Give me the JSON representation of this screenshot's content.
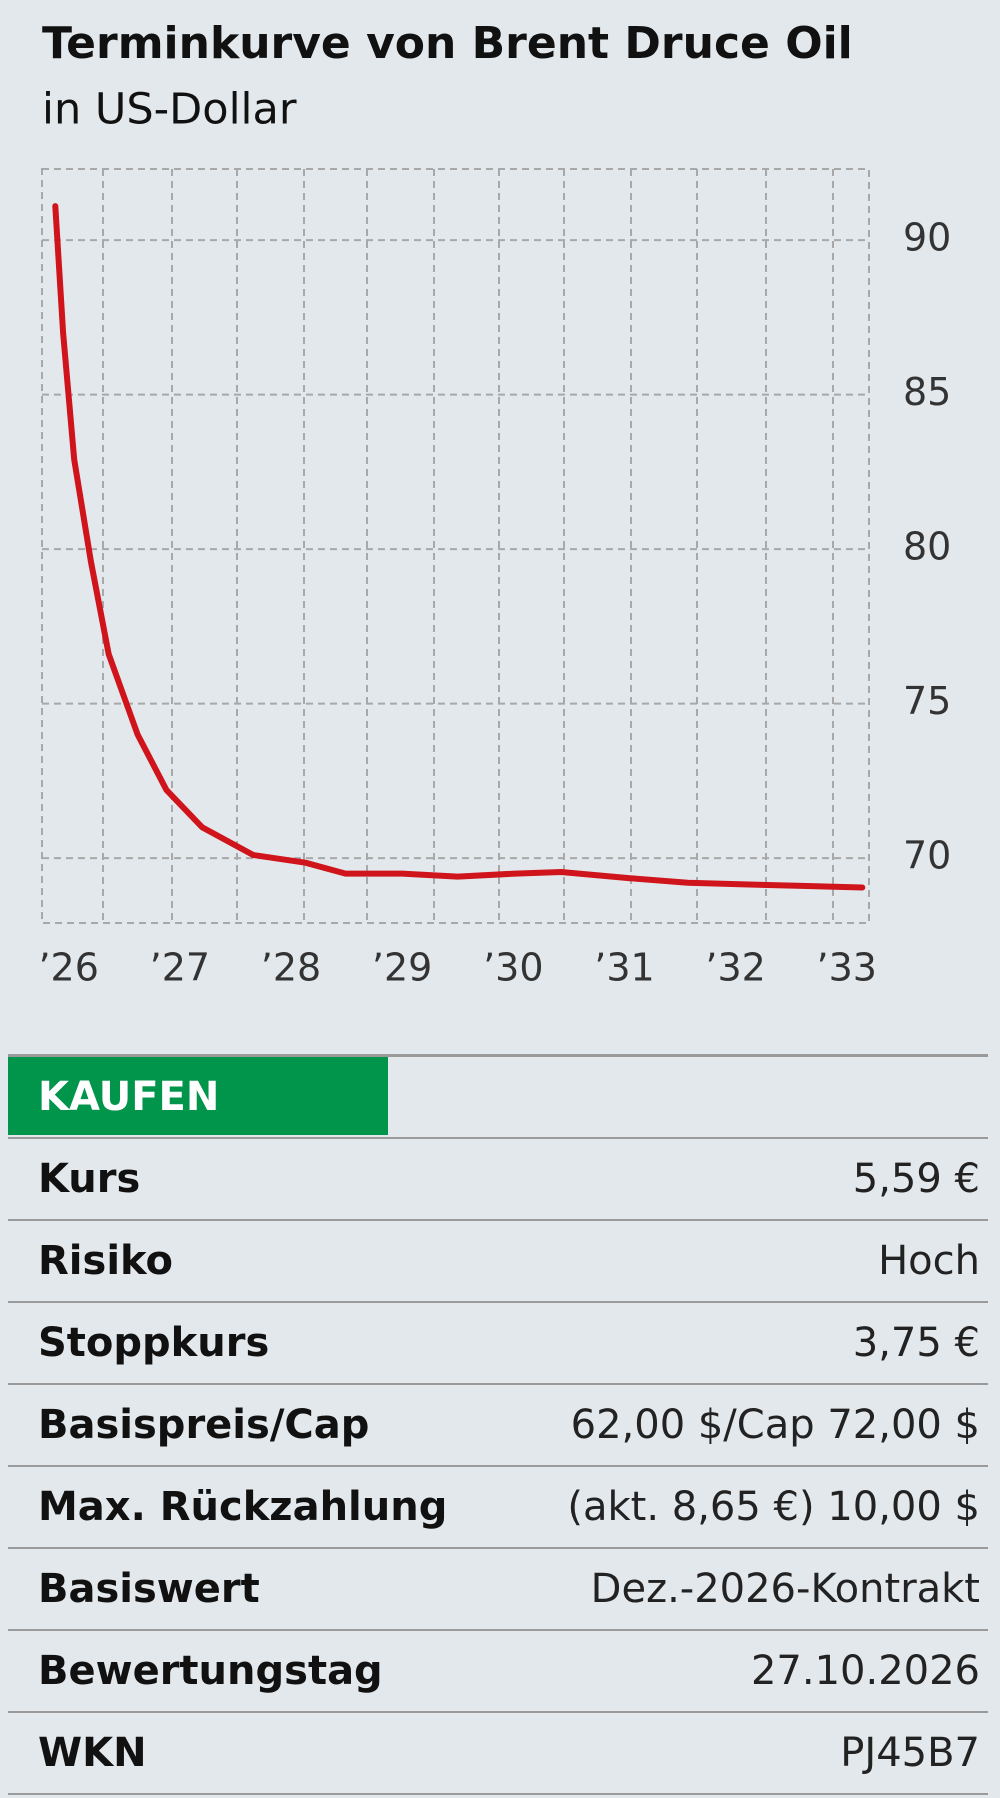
{
  "chart_data": {
    "type": "line",
    "title": "Terminkurve von Brent Druce Oil",
    "subtitle": "in US-Dollar",
    "x": [
      25.88,
      25.95,
      26.05,
      26.2,
      26.36,
      26.62,
      26.88,
      27.2,
      27.66,
      28.13,
      28.49,
      29.0,
      29.5,
      30.02,
      30.43,
      31.05,
      31.57,
      32.08,
      32.6,
      33.14
    ],
    "values": [
      91.1,
      87.0,
      82.9,
      79.6,
      76.6,
      74.0,
      72.2,
      71.0,
      70.1,
      69.85,
      69.5,
      69.5,
      69.4,
      69.5,
      69.55,
      69.35,
      69.2,
      69.15,
      69.1,
      69.05
    ],
    "color": "#d0141c",
    "xlim": [
      25.76,
      33.2
    ],
    "xticks": [
      {
        "value": 26,
        "label": "’26"
      },
      {
        "value": 27,
        "label": "’27"
      },
      {
        "value": 28,
        "label": "’28"
      },
      {
        "value": 29,
        "label": "’29"
      },
      {
        "value": 30,
        "label": "’30"
      },
      {
        "value": 31,
        "label": "’31"
      },
      {
        "value": 32,
        "label": "’32"
      },
      {
        "value": 33,
        "label": "’33"
      }
    ],
    "ylim": [
      67.9,
      92.3
    ],
    "yticks": [
      70,
      75,
      80,
      85,
      90
    ],
    "grid": true
  },
  "table": {
    "header": "KAUFEN",
    "rows": [
      [
        "Kurs",
        "5,59 €"
      ],
      [
        "Risiko",
        "Hoch"
      ],
      [
        "Stoppkurs",
        "3,75 €"
      ],
      [
        "Basispreis/Cap",
        "62,00 $/Cap 72,00 $"
      ],
      [
        "Max. Rückzahlung",
        "(akt. 8,65 €) 10,00 $"
      ],
      [
        "Basiswert",
        "Dez.-2026-Kontrakt"
      ],
      [
        "Bewertungstag",
        "27.10.2026"
      ],
      [
        "WKN",
        "PJ45B7"
      ]
    ]
  }
}
